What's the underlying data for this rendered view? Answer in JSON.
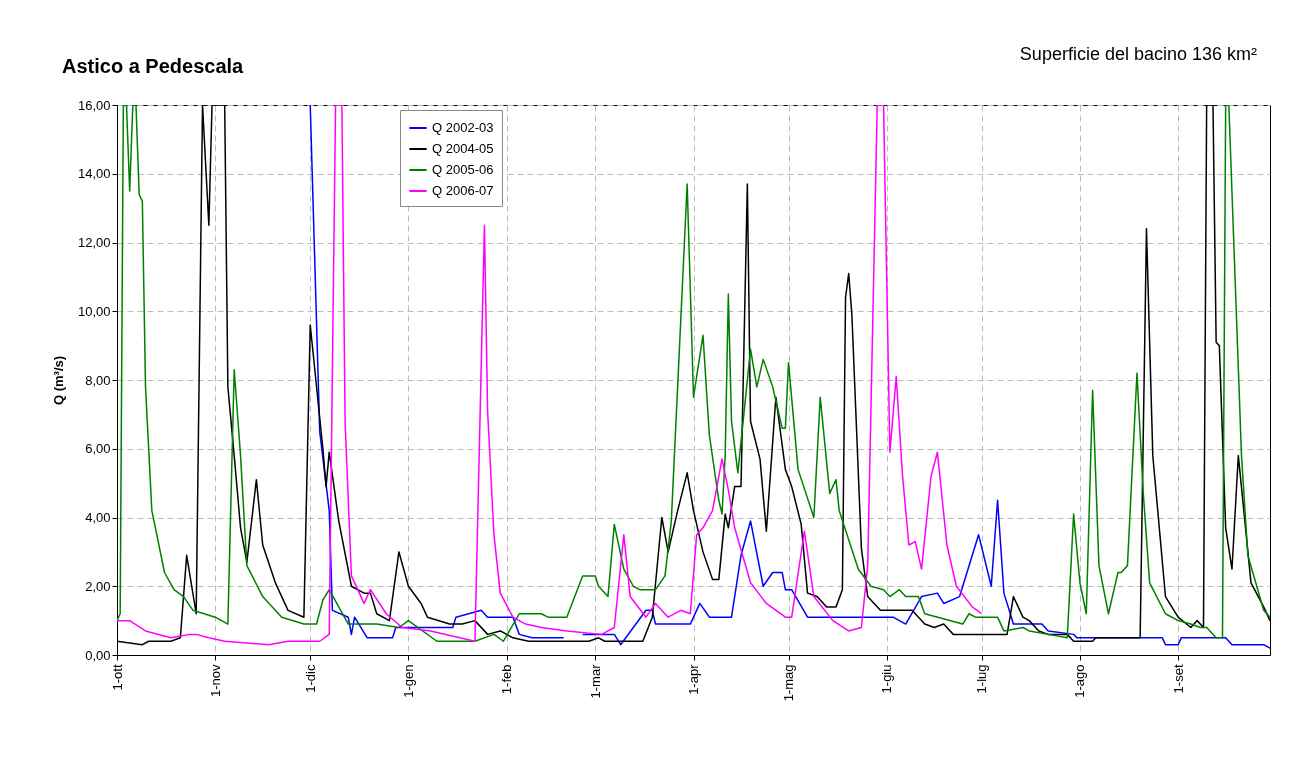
{
  "chart_data": {
    "type": "line",
    "title": "Astico a Pedescala",
    "subtitle": "Superficie del bacino 136 km²",
    "ylabel": "Q (m³/s)",
    "xlim": [
      "2001-10-01",
      "2002-09-30"
    ],
    "xticks": [
      {
        "value": "2001-10-01",
        "label": "1-ott"
      },
      {
        "value": "2001-11-01",
        "label": "1-nov"
      },
      {
        "value": "2001-12-01",
        "label": "1-dic"
      },
      {
        "value": "2002-01-01",
        "label": "1-gen"
      },
      {
        "value": "2002-02-01",
        "label": "1-feb"
      },
      {
        "value": "2002-03-01",
        "label": "1-mar"
      },
      {
        "value": "2002-04-01",
        "label": "1-apr"
      },
      {
        "value": "2002-05-01",
        "label": "1-mag"
      },
      {
        "value": "2002-06-01",
        "label": "1-giu"
      },
      {
        "value": "2002-07-01",
        "label": "1-lug"
      },
      {
        "value": "2002-08-01",
        "label": "1-ago"
      },
      {
        "value": "2002-09-01",
        "label": "1-set"
      }
    ],
    "ylim": [
      0,
      16
    ],
    "yticks": [
      {
        "value": 0,
        "label": "0,00"
      },
      {
        "value": 2,
        "label": "2,00"
      },
      {
        "value": 4,
        "label": "4,00"
      },
      {
        "value": 6,
        "label": "6,00"
      },
      {
        "value": 8,
        "label": "8,00"
      },
      {
        "value": 10,
        "label": "10,00"
      },
      {
        "value": 12,
        "label": "12,00"
      },
      {
        "value": 14,
        "label": "14,00"
      },
      {
        "value": 16,
        "label": "16,00"
      }
    ],
    "grid": true,
    "legend": "top left",
    "line_style": "solid",
    "marker": "none",
    "series": [
      {
        "name": "Q 2002-03",
        "color": "#0000ff",
        "x": [
          "2001-12-01",
          "2001-12-04",
          "2001-12-07",
          "2001-12-08",
          "2001-12-13",
          "2001-12-14",
          "2001-12-15",
          "2001-12-19",
          "2001-12-27",
          "2001-12-28",
          "2002-01-15",
          "2002-01-16",
          "2002-01-24",
          "2002-01-26",
          "2002-02-03",
          "2002-02-05",
          "2002-02-09",
          "2002-02-19",
          "2002-02-22",
          "2002-02-25",
          "2002-03-07",
          "2002-03-09",
          "2002-03-17",
          "2002-03-19",
          "2002-03-20",
          "2002-03-31",
          "2002-04-03",
          "2002-04-06",
          "2002-04-13",
          "2002-04-16",
          "2002-04-19",
          "2002-04-23",
          "2002-04-26",
          "2002-04-29",
          "2002-04-30",
          "2002-05-02",
          "2002-05-07",
          "2002-06-03",
          "2002-06-07",
          "2002-06-12",
          "2002-06-17",
          "2002-06-19",
          "2002-06-24",
          "2002-06-26",
          "2002-06-30",
          "2002-07-04",
          "2002-07-06",
          "2002-07-08",
          "2002-07-11",
          "2002-07-20",
          "2002-07-22",
          "2002-07-30",
          "2002-07-31",
          "2002-08-27",
          "2002-08-28",
          "2002-09-01",
          "2002-09-02",
          "2002-09-16",
          "2002-09-18",
          "2002-09-28",
          "2002-09-30"
        ],
        "values": [
          16,
          6.5,
          4.2,
          1.3,
          1.1,
          0.6,
          1.1,
          0.5,
          0.5,
          0.8,
          0.8,
          1.1,
          1.3,
          1.1,
          1.1,
          0.6,
          0.5,
          0.5,
          null,
          0.6,
          0.6,
          0.3,
          1.3,
          1.3,
          0.9,
          0.9,
          1.5,
          1.1,
          1.1,
          2.9,
          3.9,
          2.0,
          2.4,
          2.4,
          1.9,
          1.9,
          1.1,
          1.1,
          0.9,
          1.7,
          1.8,
          1.5,
          1.7,
          2.3,
          3.5,
          2.0,
          4.5,
          1.8,
          0.9,
          0.9,
          0.7,
          0.6,
          0.5,
          0.5,
          0.3,
          0.3,
          0.5,
          0.5,
          0.3,
          0.3,
          0.2
        ]
      },
      {
        "name": "Q 2004-05",
        "color": "#000000",
        "x": [
          "2001-10-01",
          "2001-10-09",
          "2001-10-11",
          "2001-10-18",
          "2001-10-21",
          "2001-10-23",
          "2001-10-26",
          "2001-10-28",
          "2001-10-30",
          "2001-10-31",
          "2001-11-04",
          "2001-11-05",
          "2001-11-07",
          "2001-11-09",
          "2001-11-11",
          "2001-11-14",
          "2001-11-16",
          "2001-11-20",
          "2001-11-24",
          "2001-11-29",
          "2001-12-01",
          "2001-12-05",
          "2001-12-06",
          "2001-12-07",
          "2001-12-10",
          "2001-12-14",
          "2001-12-18",
          "2001-12-20",
          "2001-12-22",
          "2001-12-26",
          "2001-12-29",
          "2002-01-01",
          "2002-01-05",
          "2002-01-07",
          "2002-01-14",
          "2002-01-18",
          "2002-01-22",
          "2002-01-26",
          "2002-01-30",
          "2002-02-03",
          "2002-02-08",
          "2002-02-27",
          "2002-03-02",
          "2002-03-04",
          "2002-03-16",
          "2002-03-19",
          "2002-03-22",
          "2002-03-24",
          "2002-03-27",
          "2002-03-30",
          "2002-04-01",
          "2002-04-04",
          "2002-04-07",
          "2002-04-09",
          "2002-04-11",
          "2002-04-12",
          "2002-04-14",
          "2002-04-16",
          "2002-04-18",
          "2002-04-19",
          "2002-04-22",
          "2002-04-24",
          "2002-04-27",
          "2002-04-30",
          "2002-05-02",
          "2002-05-05",
          "2002-05-07",
          "2002-05-10",
          "2002-05-13",
          "2002-05-16",
          "2002-05-18",
          "2002-05-19",
          "2002-05-20",
          "2002-05-21",
          "2002-05-24",
          "2002-05-26",
          "2002-05-30",
          "2002-06-09",
          "2002-06-13",
          "2002-06-16",
          "2002-06-19",
          "2002-06-22",
          "2002-07-09",
          "2002-07-11",
          "2002-07-14",
          "2002-07-16",
          "2002-07-19",
          "2002-07-22",
          "2002-07-28",
          "2002-07-30",
          "2002-08-05",
          "2002-08-06",
          "2002-08-20",
          "2002-08-22",
          "2002-08-24",
          "2002-08-28",
          "2002-09-01",
          "2002-09-05",
          "2002-09-07",
          "2002-09-09",
          "2002-09-10",
          "2002-09-12",
          "2002-09-13",
          "2002-09-14",
          "2002-09-16",
          "2002-09-18",
          "2002-09-20",
          "2002-09-24",
          "2002-09-28",
          "2002-09-30"
        ],
        "values": [
          0.4,
          0.3,
          0.4,
          0.4,
          0.5,
          2.9,
          1.2,
          16,
          12.5,
          16,
          16,
          7.8,
          5.8,
          3.7,
          2.7,
          5.1,
          3.2,
          2.1,
          1.3,
          1.1,
          9.6,
          6.0,
          4.9,
          5.9,
          3.9,
          2.0,
          1.8,
          1.8,
          1.2,
          1.0,
          3.0,
          2.0,
          1.5,
          1.1,
          0.9,
          0.9,
          1.0,
          0.6,
          0.7,
          0.5,
          0.4,
          0.4,
          0.5,
          0.4,
          0.4,
          1.1,
          4.0,
          3.0,
          4.2,
          5.3,
          4.2,
          3.0,
          2.2,
          2.2,
          4.1,
          3.7,
          4.9,
          4.9,
          13.7,
          6.8,
          5.7,
          3.6,
          7.5,
          5.4,
          4.9,
          3.8,
          1.8,
          1.7,
          1.4,
          1.4,
          1.9,
          10.4,
          11.1,
          9.9,
          3.1,
          1.7,
          1.3,
          1.3,
          0.9,
          0.8,
          0.9,
          0.6,
          0.6,
          1.7,
          1.1,
          1.0,
          0.7,
          0.6,
          0.6,
          0.4,
          0.4,
          0.5,
          0.5,
          12.4,
          5.8,
          1.7,
          1.1,
          0.8,
          1.0,
          0.8,
          16,
          16,
          9.1,
          9.0,
          3.7,
          2.5,
          5.8,
          2.1,
          1.4,
          1.0
        ]
      },
      {
        "name": "Q 2005-06",
        "color": "#008000",
        "x": [
          "2001-10-01",
          "2001-10-02",
          "2001-10-03",
          "2001-10-04",
          "2001-10-05",
          "2001-10-06",
          "2001-10-07",
          "2001-10-08",
          "2001-10-09",
          "2001-10-10",
          "2001-10-12",
          "2001-10-16",
          "2001-10-19",
          "2001-10-22",
          "2001-10-25",
          "2001-11-01",
          "2001-11-05",
          "2001-11-07",
          "2001-11-09",
          "2001-11-11",
          "2001-11-16",
          "2001-11-22",
          "2001-11-29",
          "2001-12-03",
          "2001-12-05",
          "2001-12-07",
          "2001-12-10",
          "2001-12-13",
          "2001-12-22",
          "2001-12-29",
          "2002-01-01",
          "2002-01-10",
          "2002-01-22",
          "2002-01-28",
          "2002-01-31",
          "2002-02-05",
          "2002-02-12",
          "2002-02-14",
          "2002-02-20",
          "2002-02-25",
          "2002-03-01",
          "2002-03-02",
          "2002-03-05",
          "2002-03-07",
          "2002-03-10",
          "2002-03-13",
          "2002-03-15",
          "2002-03-20",
          "2002-03-23",
          "2002-03-25",
          "2002-03-30",
          "2002-04-01",
          "2002-04-04",
          "2002-04-06",
          "2002-04-09",
          "2002-04-10",
          "2002-04-11",
          "2002-04-12",
          "2002-04-13",
          "2002-04-15",
          "2002-04-19",
          "2002-04-21",
          "2002-04-23",
          "2002-04-26",
          "2002-04-29",
          "2002-04-30",
          "2002-05-01",
          "2002-05-04",
          "2002-05-09",
          "2002-05-11",
          "2002-05-14",
          "2002-05-16",
          "2002-05-17",
          "2002-05-23",
          "2002-05-27",
          "2002-05-31",
          "2002-06-02",
          "2002-06-05",
          "2002-06-07",
          "2002-06-11",
          "2002-06-13",
          "2002-06-25",
          "2002-06-27",
          "2002-06-29",
          "2002-07-06",
          "2002-07-08",
          "2002-07-14",
          "2002-07-16",
          "2002-07-22",
          "2002-07-28",
          "2002-07-30",
          "2002-08-01",
          "2002-08-03",
          "2002-08-05",
          "2002-08-07",
          "2002-08-10",
          "2002-08-13",
          "2002-08-14",
          "2002-08-16",
          "2002-08-19",
          "2002-08-21",
          "2002-08-23",
          "2002-08-28",
          "2002-09-01",
          "2002-09-05",
          "2002-09-08",
          "2002-09-10",
          "2002-09-13",
          "2002-09-15",
          "2002-09-16",
          "2002-09-17",
          "2002-09-21",
          "2002-09-23",
          "2002-09-28",
          "2002-09-30"
        ],
        "values": [
          1.0,
          1.2,
          16,
          16,
          13.5,
          16,
          16,
          13.4,
          13.2,
          7.8,
          4.2,
          2.4,
          1.9,
          1.7,
          1.3,
          1.1,
          0.9,
          8.3,
          5.8,
          2.6,
          1.7,
          1.1,
          0.9,
          0.9,
          1.6,
          1.9,
          1.4,
          0.9,
          0.9,
          0.8,
          1.0,
          0.4,
          0.4,
          0.6,
          0.4,
          1.2,
          1.2,
          1.1,
          1.1,
          2.3,
          2.3,
          2.0,
          1.7,
          3.8,
          2.5,
          2.0,
          1.9,
          1.9,
          2.3,
          3.9,
          13.7,
          7.5,
          9.3,
          6.4,
          4.5,
          4.1,
          5.8,
          10.5,
          6.8,
          5.3,
          8.9,
          7.8,
          8.6,
          7.8,
          6.6,
          6.6,
          8.5,
          5.4,
          4.0,
          7.5,
          4.7,
          5.1,
          4.2,
          2.5,
          2.0,
          1.9,
          1.7,
          1.9,
          1.7,
          1.7,
          1.2,
          0.9,
          1.2,
          1.1,
          1.1,
          0.7,
          0.8,
          0.7,
          0.6,
          0.5,
          4.1,
          2.1,
          1.2,
          7.7,
          2.6,
          1.2,
          2.4,
          2.4,
          2.6,
          8.2,
          4.7,
          2.1,
          1.2,
          1.0,
          0.9,
          0.8,
          0.8,
          0.5,
          0.5,
          16,
          16,
          5.8,
          2.9,
          1.3,
          1.1
        ]
      },
      {
        "name": "Q 2006-07",
        "color": "#ff00ff",
        "x": [
          "2001-10-01",
          "2001-10-03",
          "2001-10-05",
          "2001-10-10",
          "2001-10-18",
          "2001-10-24",
          "2001-10-26",
          "2001-10-30",
          "2001-11-04",
          "2001-11-18",
          "2001-11-24",
          "2001-11-30",
          "2001-12-04",
          "2001-12-07",
          "2001-12-09",
          "2001-12-11",
          "2001-12-12",
          "2001-12-14",
          "2001-12-18",
          "2001-12-20",
          "2001-12-25",
          "2001-12-30",
          "2002-01-08",
          "2002-01-22",
          "2002-01-25",
          "2002-01-26",
          "2002-01-28",
          "2002-01-30",
          "2002-02-03",
          "2002-02-07",
          "2002-02-12",
          "2002-02-20",
          "2002-03-03",
          "2002-03-07",
          "2002-03-10",
          "2002-03-12",
          "2002-03-17",
          "2002-03-20",
          "2002-03-24",
          "2002-03-28",
          "2002-03-31",
          "2002-04-02",
          "2002-04-04",
          "2002-04-07",
          "2002-04-10",
          "2002-04-12",
          "2002-04-14",
          "2002-04-19",
          "2002-04-24",
          "2002-04-30",
          "2002-05-02",
          "2002-05-06",
          "2002-05-09",
          "2002-05-15",
          "2002-05-20",
          "2002-05-24",
          "2002-05-26",
          "2002-05-29",
          "2002-05-31",
          "2002-06-02",
          "2002-06-04",
          "2002-06-06",
          "2002-06-08",
          "2002-06-10",
          "2002-06-12",
          "2002-06-15",
          "2002-06-17",
          "2002-06-20",
          "2002-06-23",
          "2002-06-28",
          "2002-07-01"
        ],
        "values": [
          1.0,
          1.0,
          1.0,
          0.7,
          0.5,
          0.6,
          0.6,
          0.5,
          0.4,
          0.3,
          0.4,
          0.4,
          0.4,
          0.6,
          16,
          16,
          6.8,
          2.3,
          1.5,
          1.9,
          1.2,
          0.8,
          0.7,
          0.4,
          12.5,
          7.1,
          3.5,
          1.8,
          1.1,
          0.9,
          0.8,
          0.7,
          0.6,
          0.8,
          3.5,
          1.7,
          1.1,
          1.5,
          1.1,
          1.3,
          1.2,
          3.5,
          3.7,
          4.2,
          5.7,
          4.8,
          3.7,
          2.1,
          1.5,
          1.1,
          1.1,
          3.6,
          1.7,
          1.0,
          0.7,
          0.8,
          2.6,
          16,
          16,
          5.9,
          8.1,
          5.2,
          3.2,
          3.3,
          2.5,
          5.2,
          5.9,
          3.2,
          2.0,
          1.4,
          1.2
        ]
      }
    ]
  }
}
